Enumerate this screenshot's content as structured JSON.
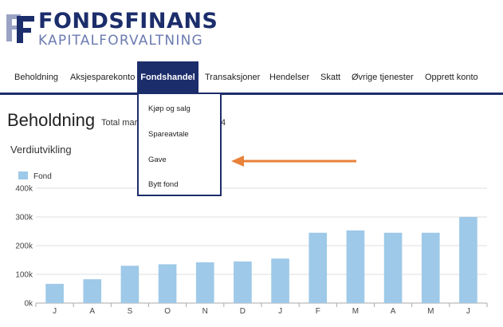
{
  "brand": {
    "name": "FONDSFINANS",
    "tagline": "KAPITALFORVALTNING",
    "color": "#1c2d6b"
  },
  "nav": {
    "items": [
      {
        "label": "Beholdning"
      },
      {
        "label": "Aksjesparekonto"
      },
      {
        "label": "Fondshandel",
        "active": true
      },
      {
        "label": "Transaksjoner"
      },
      {
        "label": "Hendelser"
      },
      {
        "label": "Skatt"
      },
      {
        "label": "Øvrige tjenester"
      },
      {
        "label": "Opprett konto"
      }
    ]
  },
  "dropdown": {
    "items": [
      "Kjøp og salg",
      "Spareavtale",
      "Gave",
      "Bytt fond"
    ]
  },
  "page": {
    "title": "Beholdning",
    "subtitle": "Total mar",
    "subtitle_tail": "4"
  },
  "section": {
    "title": "Verdiutvikling"
  },
  "annotation": {
    "arrow_color": "#e8823a",
    "points_to": "Gave"
  },
  "chart_data": {
    "type": "bar",
    "categories": [
      "J",
      "A",
      "S",
      "O",
      "N",
      "D",
      "J",
      "F",
      "M",
      "A",
      "M",
      "J"
    ],
    "series": [
      {
        "name": "Fond",
        "color": "#9ec9e8",
        "values": [
          67000,
          83000,
          130000,
          135000,
          142000,
          145000,
          155000,
          245000,
          253000,
          245000,
          245000,
          300000
        ]
      }
    ],
    "yticks": [
      "0k",
      "100k",
      "200k",
      "300k",
      "400k"
    ],
    "ylim": [
      0,
      400000
    ],
    "grid": true,
    "legend": "top-left"
  }
}
